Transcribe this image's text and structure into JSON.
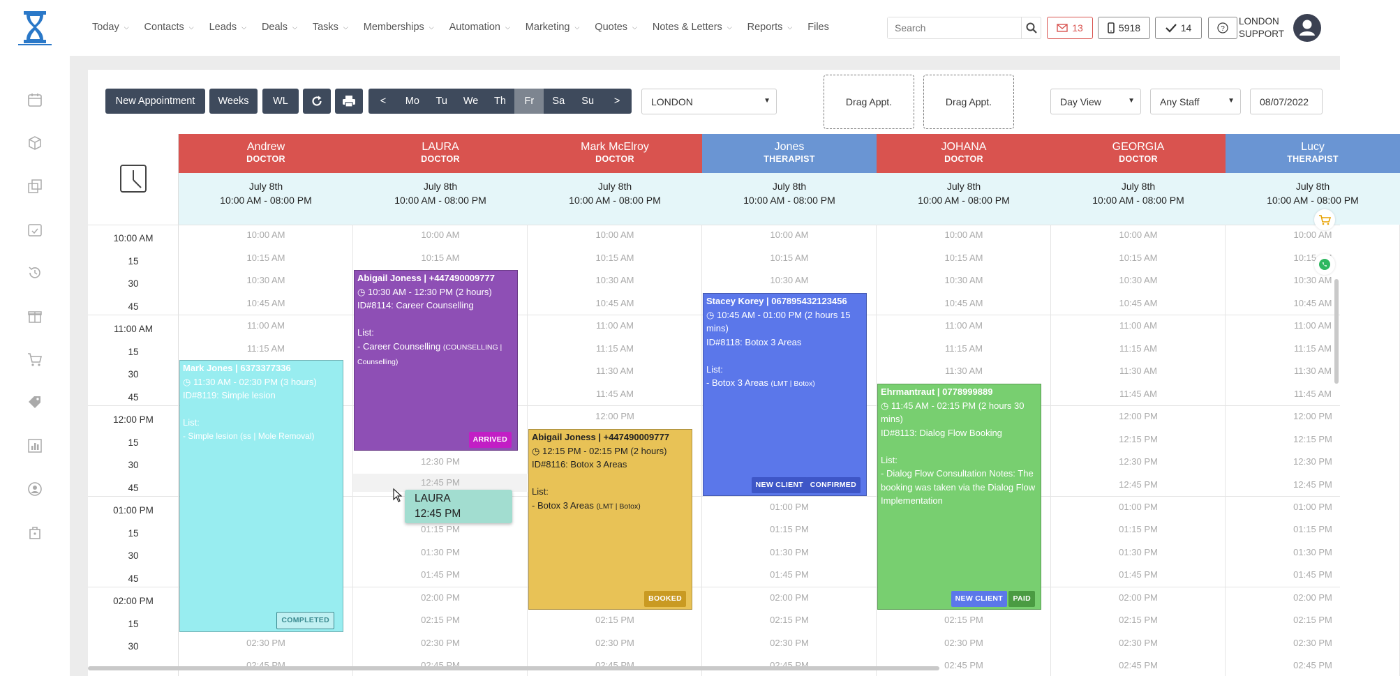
{
  "nav": {
    "items": [
      {
        "label": "Today",
        "chev": "⌵"
      },
      {
        "label": "Contacts",
        "chev": "⌵"
      },
      {
        "label": "Leads",
        "chev": "⌵"
      },
      {
        "label": "Deals",
        "chev": "⌵"
      },
      {
        "label": "Tasks",
        "chev": "⌵"
      },
      {
        "label": "Memberships",
        "chev": "⌵"
      },
      {
        "label": "Automation",
        "chev": "⌵"
      },
      {
        "label": "Marketing",
        "chev": "⌵"
      },
      {
        "label": "Quotes",
        "chev": "⌵"
      },
      {
        "label": "Notes & Letters",
        "chev": "⌵"
      },
      {
        "label": "Reports",
        "chev": "⌵"
      },
      {
        "label": "Files",
        "chev": ""
      }
    ]
  },
  "search": {
    "placeholder": "Search"
  },
  "counters": {
    "mail": "13",
    "phone": "5918",
    "tasks": "14"
  },
  "user": {
    "line1": "LONDON",
    "line2": "SUPPORT"
  },
  "toolbar": {
    "new_appointment": "New Appointment",
    "weeks": "Weeks",
    "wl": "WL",
    "days": [
      "<",
      "Mo",
      "Tu",
      "We",
      "Th",
      "Fr",
      "Sa",
      "Su",
      ">"
    ],
    "location": "LONDON",
    "drag1": "Drag Appt.",
    "drag2": "Drag Appt.",
    "view": "Day View",
    "staff": "Any Staff",
    "date": "08/07/2022"
  },
  "time_labels": [
    "10:00 AM",
    "15",
    "30",
    "45",
    "11:00 AM",
    "15",
    "30",
    "45",
    "12:00 PM",
    "15",
    "30",
    "45",
    "01:00 PM",
    "15",
    "30",
    "45",
    "02:00 PM",
    "15",
    "30"
  ],
  "slot_labels": [
    "10:00 AM",
    "10:15 AM",
    "10:30 AM",
    "10:45 AM",
    "11:00 AM",
    "11:15 AM",
    "11:30 AM",
    "11:45 AM",
    "12:00 PM",
    "12:15 PM",
    "12:30 PM",
    "12:45 PM",
    "01:00 PM",
    "01:15 PM",
    "01:30 PM",
    "01:45 PM",
    "02:00 PM",
    "02:15 PM",
    "02:30 PM",
    "02:45 PM"
  ],
  "staff": [
    {
      "name": "Andrew",
      "role": "DOCTOR",
      "color": "#d9534f",
      "date": "July 8th",
      "hours": "10:00 AM - 08:00 PM"
    },
    {
      "name": "LAURA",
      "role": "DOCTOR",
      "color": "#d9534f",
      "date": "July 8th",
      "hours": "10:00 AM - 08:00 PM"
    },
    {
      "name": "Mark McElroy",
      "role": "DOCTOR",
      "color": "#d9534f",
      "date": "July 8th",
      "hours": "10:00 AM - 08:00 PM"
    },
    {
      "name": "Jones",
      "role": "THERAPIST",
      "color": "#6a95d3",
      "date": "July 8th",
      "hours": "10:00 AM - 08:00 PM"
    },
    {
      "name": "JOHANA",
      "role": "DOCTOR",
      "color": "#d9534f",
      "date": "July 8th",
      "hours": "10:00 AM - 08:00 PM"
    },
    {
      "name": "GEORGIA",
      "role": "DOCTOR",
      "color": "#d9534f",
      "date": "July 8th",
      "hours": "10:00 AM - 08:00 PM"
    },
    {
      "name": "Lucy",
      "role": "THERAPIST",
      "color": "#6a95d3",
      "date": "July 8th",
      "hours": "10:00 AM - 08:00 PM"
    }
  ],
  "appointments": {
    "a8119": {
      "client": "Mark Jones | 6373377336",
      "time": "11:30 AM - 02:30 PM (3 hours)",
      "id": "ID#8119: Simple lesion",
      "list": "List:",
      "item": "- Simple lesion (ss | Mole Removal)",
      "badge": "COMPLETED"
    },
    "a8114": {
      "client": "Abigail Joness | +447490009777",
      "time": "10:30 AM - 12:30 PM (2 hours)",
      "id": "ID#8114: Career Counselling",
      "list": "List:",
      "item": "- Career Counselling",
      "item_small": "(COUNSELLING | Counselling)",
      "badge": "ARRIVED"
    },
    "a8116": {
      "client": "Abigail Joness | +447490009777",
      "time": "12:15 PM - 02:15 PM (2 hours)",
      "id": "ID#8116: Botox 3 Areas",
      "list": "List:",
      "item": "- Botox 3 Areas",
      "item_small": "(LMT | Botox)",
      "badge": "BOOKED"
    },
    "a8118": {
      "client": "Stacey Korey | 067895432123456",
      "time": "10:45 AM - 01:00 PM (2 hours 15 mins)",
      "id": "ID#8118: Botox 3 Areas",
      "list": "List:",
      "item": "- Botox 3 Areas",
      "item_small": "(LMT | Botox)",
      "badge1": "NEW CLIENT",
      "badge2": "CONFIRMED"
    },
    "a8113": {
      "client": "Ehrmantraut | 0778999889",
      "time": "11:45 AM - 02:15 PM (2 hours 30 mins)",
      "id": "ID#8113: Dialog Flow Booking",
      "list": "List:",
      "item": "- Dialog Flow Consultation Notes: The booking was taken via the Dialog Flow Implementation",
      "badge1": "NEW CLIENT",
      "badge2": "PAID"
    }
  },
  "drag_tooltip": {
    "name": "LAURA",
    "time": "12:45 PM"
  },
  "colors": {
    "toolbar_dark": "#3e4a5c",
    "doctor_header": "#d9534f",
    "therapist_header": "#6a95d3",
    "cyan_appt": "#98edf0",
    "purple_appt": "#8e4fb5",
    "yellow_appt": "#e8c256",
    "blue_appt": "#5b77ea",
    "green_appt": "#78cf70"
  }
}
